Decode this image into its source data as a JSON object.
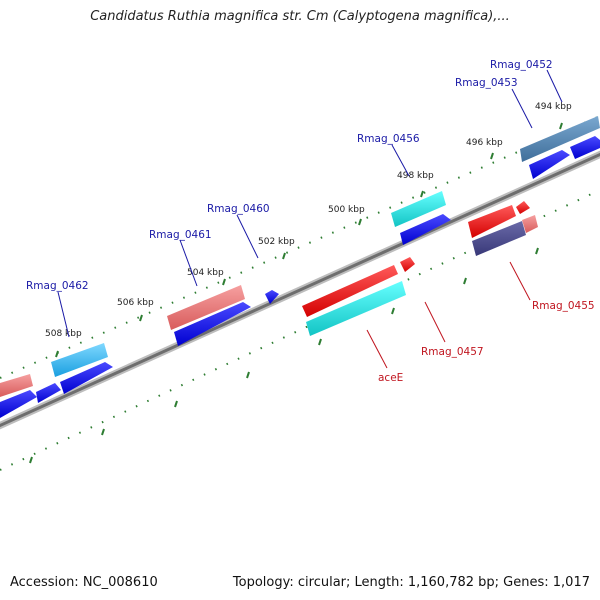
{
  "title": "Candidatus Ruthia magnifica str. Cm (Calyptogena magnifica),...",
  "footer": {
    "accession": "Accession: NC_008610",
    "summary": "Topology: circular; Length: 1,160,782 bp; Genes: 1,017"
  },
  "ticks": {
    "t494": "494 kbp",
    "t496": "496 kbp",
    "t498": "498 kbp",
    "t500": "500 kbp",
    "t502": "502 kbp",
    "t504": "504 kbp",
    "t506": "506 kbp",
    "t508": "508 kbp"
  },
  "genes": {
    "g0452": "Rmag_0452",
    "g0453": "Rmag_0453",
    "g0456": "Rmag_0456",
    "g0460": "Rmag_0460",
    "g0461": "Rmag_0461",
    "g0462": "Rmag_0462",
    "g0455": "Rmag_0455",
    "g0457": "Rmag_0457",
    "aceE": "aceE"
  },
  "colors": {
    "forward_label": "#1a1aa6",
    "reverse_label": "#c0151f",
    "backbone": "#7a7a7a",
    "tick": "#2e7d32"
  }
}
